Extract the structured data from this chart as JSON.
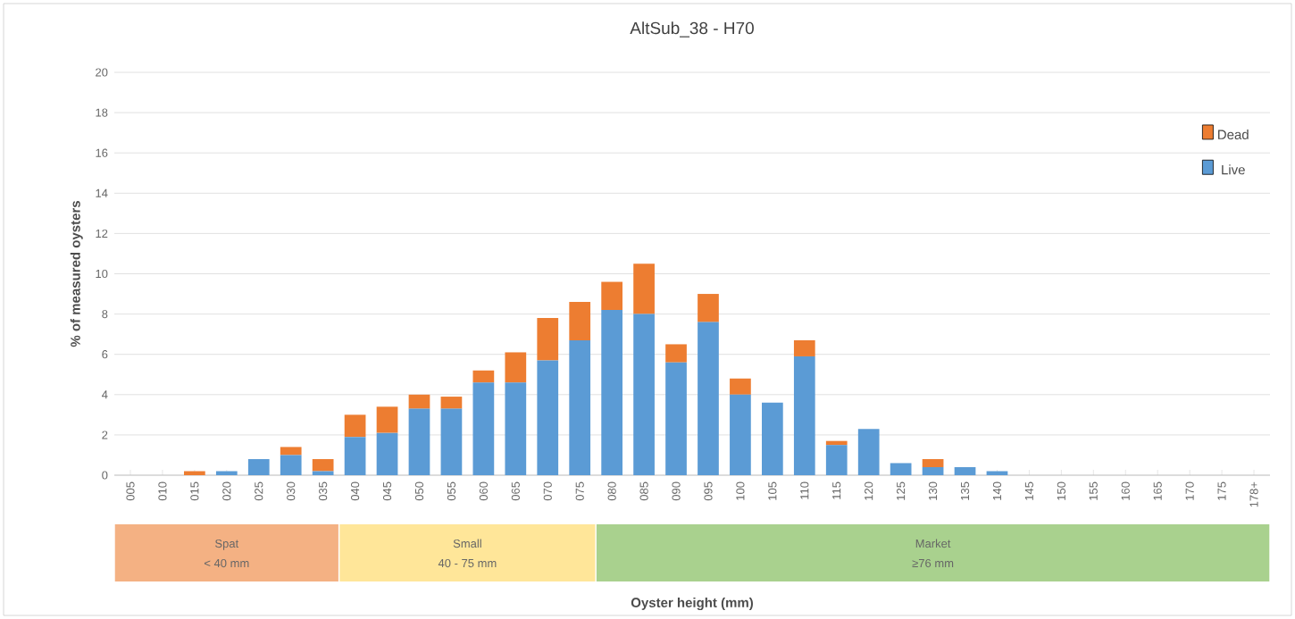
{
  "chart_data": {
    "type": "bar",
    "title": "AltSub_38  -  H70",
    "ylabel": "% of measured oysters",
    "categories": [
      "005",
      "010",
      "015",
      "020",
      "025",
      "030",
      "035",
      "040",
      "045",
      "050",
      "055",
      "060",
      "065",
      "070",
      "075",
      "080",
      "085",
      "090",
      "095",
      "100",
      "105",
      "110",
      "115",
      "120",
      "125",
      "130",
      "135",
      "140",
      "145",
      "150",
      "155",
      "160",
      "165",
      "170",
      "175",
      "178+"
    ],
    "stacked": true,
    "series": [
      {
        "name": "Live",
        "color": "#5b9bd5",
        "values": [
          0,
          0,
          0,
          0.2,
          0.8,
          1.0,
          0.2,
          1.9,
          2.1,
          3.3,
          3.3,
          4.6,
          4.6,
          5.7,
          6.7,
          8.2,
          8.0,
          5.6,
          7.6,
          4.0,
          3.6,
          5.9,
          1.5,
          2.3,
          0.6,
          0.4,
          0.4,
          0.2,
          0,
          0,
          0,
          0,
          0,
          0,
          0,
          0
        ]
      },
      {
        "name": "Dead",
        "color": "#ed7d31",
        "values": [
          0,
          0,
          0.2,
          0,
          0,
          0.4,
          0.6,
          1.1,
          1.3,
          0.7,
          0.6,
          0.6,
          1.5,
          2.1,
          1.9,
          1.4,
          2.5,
          0.9,
          1.4,
          0.8,
          0,
          0.8,
          0.2,
          0,
          0,
          0.4,
          0,
          0,
          0,
          0,
          0,
          0,
          0,
          0,
          0,
          0
        ]
      }
    ],
    "ylim": [
      0,
      20
    ],
    "yticks": [
      0,
      2,
      4,
      6,
      8,
      10,
      12,
      14,
      16,
      18,
      20
    ],
    "grid": "y",
    "legend": "top right",
    "annotations": [
      "Spat",
      "< 40 mm",
      "Small",
      "40 - 75 mm",
      "Market",
      "≥76 mm",
      "Oyster height (mm)"
    ]
  }
}
